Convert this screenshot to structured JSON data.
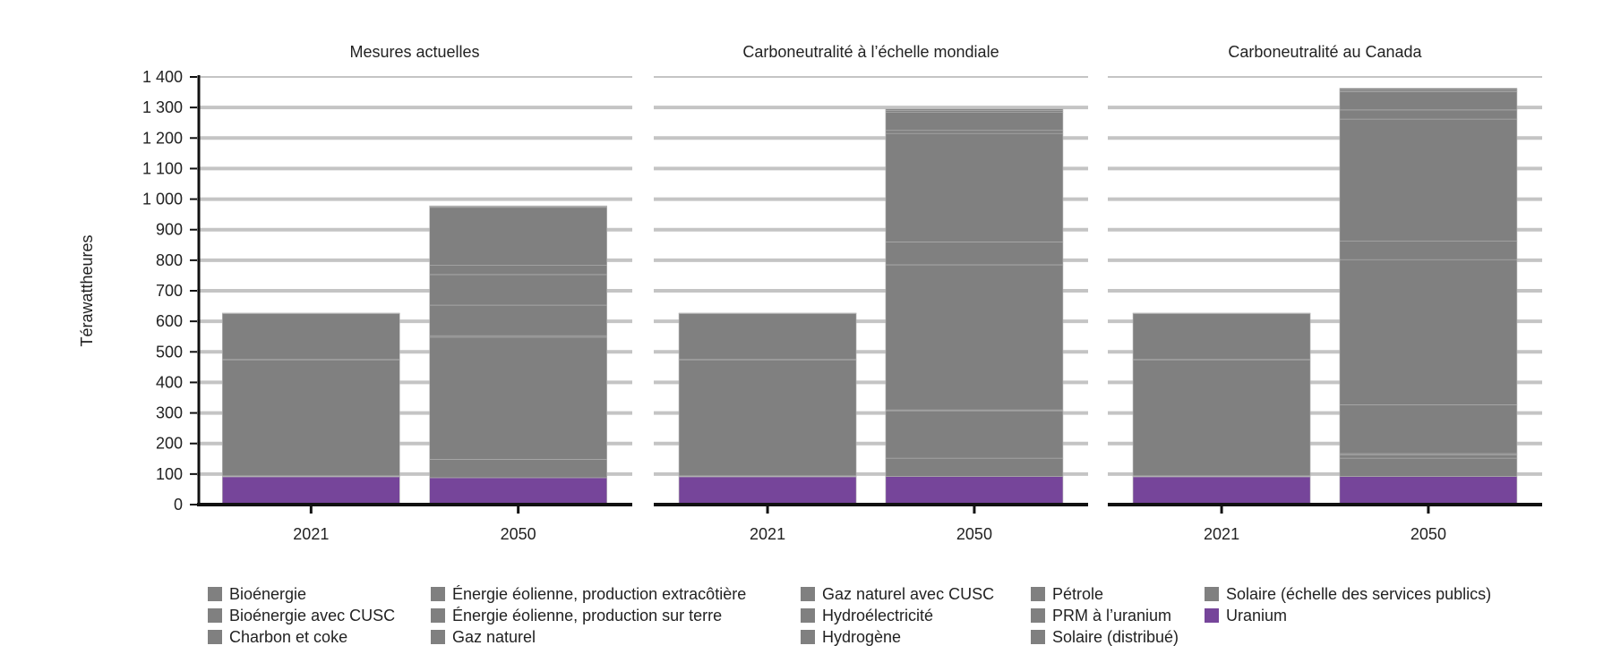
{
  "chart_data": {
    "type": "bar",
    "stacked": true,
    "ylabel": "Térawattheures",
    "ylim": [
      0,
      1400
    ],
    "yticks": [
      0,
      100,
      200,
      300,
      400,
      500,
      600,
      700,
      800,
      900,
      1000,
      1100,
      1200,
      1300,
      1400
    ],
    "ytick_labels": [
      "0",
      "100",
      "200",
      "300",
      "400",
      "500",
      "600",
      "700",
      "800",
      "900",
      "1 000",
      "1 100",
      "1 200",
      "1 300",
      "1 400"
    ],
    "grid": true,
    "legend_position": "bottom",
    "categories": [
      "2021",
      "2050"
    ],
    "panels": [
      {
        "title": "Mesures actuelles",
        "stacks": [
          [
            91,
            2,
            1,
            380,
            1,
            0,
            150,
            0,
            0,
            0,
            0,
            0,
            0,
            2
          ],
          [
            88,
            0,
            60,
            400,
            0,
            0,
            5,
            100,
            100,
            30,
            0,
            190,
            3,
            2
          ]
        ]
      },
      {
        "title": "Carboneutralité à l’échelle mondiale",
        "stacks": [
          [
            91,
            2,
            1,
            380,
            1,
            0,
            150,
            0,
            0,
            0,
            0,
            0,
            0,
            2
          ],
          [
            92,
            0,
            60,
            155,
            0,
            0,
            3,
            475,
            75,
            355,
            10,
            60,
            5,
            5
          ]
        ]
      },
      {
        "title": "Carboneutralité au Canada",
        "stacks": [
          [
            91,
            2,
            1,
            380,
            1,
            0,
            150,
            0,
            0,
            0,
            0,
            0,
            0,
            2
          ],
          [
            92,
            0,
            60,
            10,
            5,
            160,
            0,
            475,
            60,
            400,
            30,
            60,
            6,
            5
          ]
        ]
      }
    ],
    "series": [
      {
        "name": "Uranium",
        "color": "#76459a"
      },
      {
        "name": "Bioénergie",
        "color": "#808080"
      },
      {
        "name": "Bioénergie avec CUSC",
        "color": "#808080"
      },
      {
        "name": "Charbon et coke",
        "color": "#808080"
      },
      {
        "name": "Énergie éolienne, production extracôtière",
        "color": "#808080"
      },
      {
        "name": "Énergie éolienne, production sur terre",
        "color": "#808080"
      },
      {
        "name": "Gaz naturel",
        "color": "#808080"
      },
      {
        "name": "Gaz naturel avec CUSC",
        "color": "#808080"
      },
      {
        "name": "Hydroélectricité",
        "color": "#808080"
      },
      {
        "name": "Hydrogène",
        "color": "#808080"
      },
      {
        "name": "Pétrole",
        "color": "#808080"
      },
      {
        "name": "PRM à l’uranium",
        "color": "#808080"
      },
      {
        "name": "Solaire (distribué)",
        "color": "#808080"
      },
      {
        "name": "Solaire (échelle des services publics)",
        "color": "#808080"
      }
    ],
    "legend_order": [
      "Bioénergie",
      "Bioénergie avec CUSC",
      "Charbon et coke",
      "Énergie éolienne, production extracôtière",
      "Énergie éolienne, production sur terre",
      "Gaz naturel",
      "Gaz naturel avec CUSC",
      "Hydroélectricité",
      "Hydrogène",
      "Pétrole",
      "PRM à l’uranium",
      "Solaire (distribué)",
      "Solaire (échelle des services publics)",
      "Uranium"
    ]
  }
}
